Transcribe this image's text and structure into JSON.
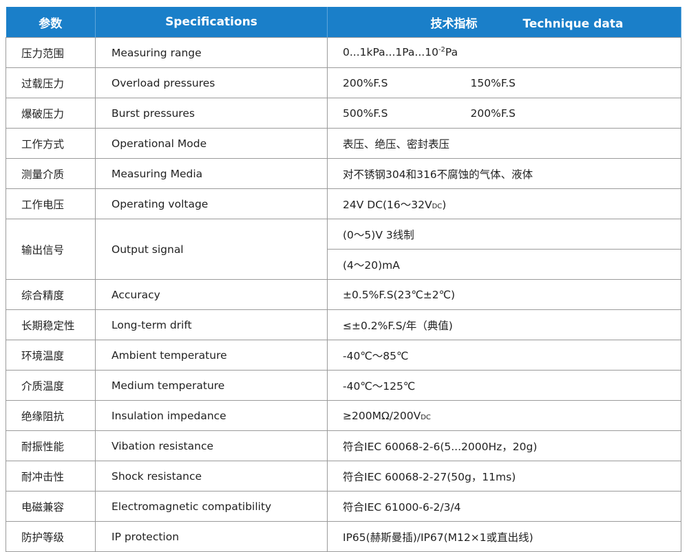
{
  "header": {
    "param": "参数",
    "spec": "Specifications",
    "tech_cn": "技术指标",
    "tech_en": "Technique data"
  },
  "rows": [
    {
      "cn": "压力范围",
      "en": "Measuring range",
      "value": "0...1kPa...1Pa...10",
      "sup": "-2",
      "suffix": "Pa"
    },
    {
      "cn": "过载压力",
      "en": "Overload pressures",
      "value": "200%F.S",
      "value2": "150%F.S"
    },
    {
      "cn": "爆破压力",
      "en": "Burst pressures",
      "value": "500%F.S",
      "value2": "200%F.S"
    },
    {
      "cn": "工作方式",
      "en": "Operational Mode",
      "value": "表压、绝压、密封表压"
    },
    {
      "cn": "测量介质",
      "en": "Measuring Media",
      "value": "对不锈钢304和316不腐蚀的气体、液体"
    },
    {
      "cn": "工作电压",
      "en": "Operating voltage",
      "value": "24V DC(16～32V",
      "small": "DC",
      "suffix": ")"
    },
    {
      "cn": "输出信号",
      "en": "Output signal",
      "value": "(0～5)V  3线制",
      "value_b": "(4～20)mA"
    },
    {
      "cn": "综合精度",
      "en": "Accuracy",
      "value": "±0.5%F.S(23℃±2℃)"
    },
    {
      "cn": "长期稳定性",
      "en": "Long-term drift",
      "value": "≤±0.2%F.S/年（典值)"
    },
    {
      "cn": "环境温度",
      "en": "Ambient temperature",
      "value": "-40℃～85℃"
    },
    {
      "cn": "介质温度",
      "en": "Medium temperature",
      "value": "-40℃～125℃"
    },
    {
      "cn": "绝缘阻抗",
      "en": "Insulation impedance",
      "value": "≥200MΩ/200V",
      "small": "DC"
    },
    {
      "cn": "耐振性能",
      "en": "Vibation resistance",
      "value": "符合IEC 60068-2-6(5...2000Hz，20g)"
    },
    {
      "cn": "耐冲击性",
      "en": "Shock   resistance",
      "value": "符合IEC 60068-2-27(50g，11ms)"
    },
    {
      "cn": "电磁兼容",
      "en": "Electromagnetic compatibility",
      "value": "符合IEC 61000-6-2/3/4"
    },
    {
      "cn": "防护等级",
      "en": "IP protection",
      "value": "IP65(赫斯曼插)/IP67(M12×1或直出线)"
    }
  ]
}
